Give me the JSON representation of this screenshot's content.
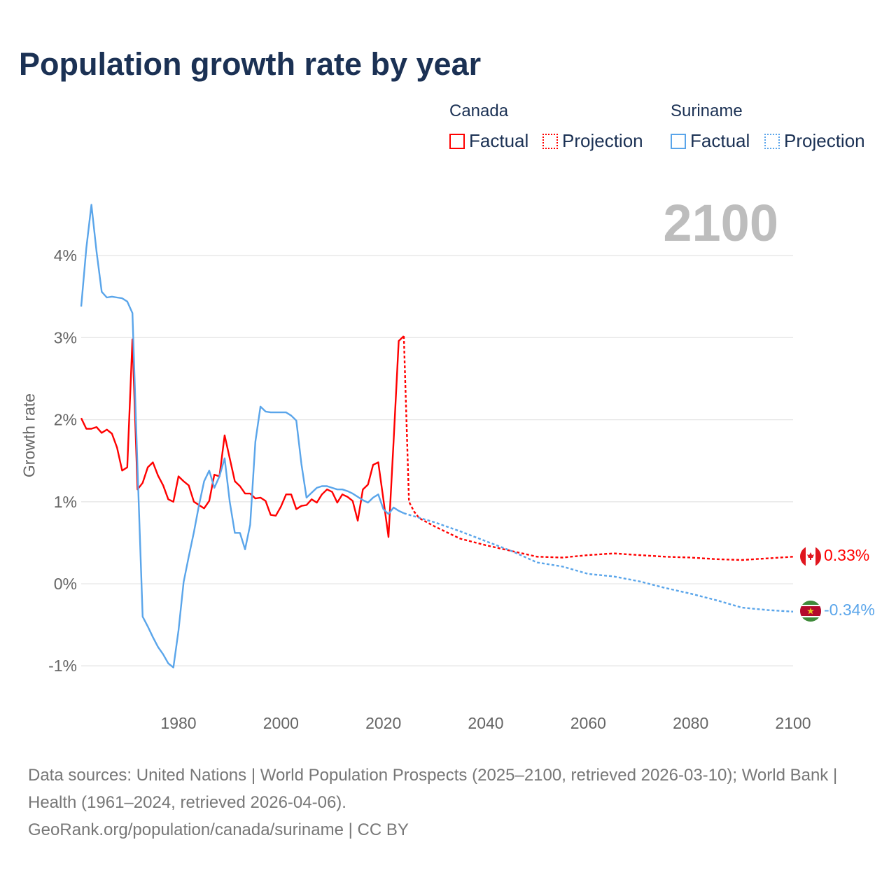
{
  "title": "Population growth rate by year",
  "year_display": "2100",
  "legend": {
    "canada": "Canada",
    "suriname": "Suriname",
    "factual": "Factual",
    "projection": "Projection"
  },
  "colors": {
    "canada": "#ff0000",
    "suriname": "#5aa5ea"
  },
  "end_labels": {
    "canada": "0.33%",
    "suriname": "-0.34%"
  },
  "footer": {
    "line1": "Data sources: United Nations | World Population Prospects (2025–2100, retrieved 2026-03-10); World Bank | Health (1961–2024, retrieved 2026-04-06).",
    "line2": "GeoRank.org/population/canada/suriname | CC BY"
  },
  "chart_data": {
    "type": "line",
    "title": "Population growth rate by year",
    "ylabel": "Growth rate",
    "xlabel": "",
    "xlim": [
      1961,
      2100
    ],
    "ylim": [
      -1.4,
      4.8
    ],
    "xticks": [
      1980,
      2000,
      2020,
      2040,
      2060,
      2080,
      2100
    ],
    "yticks": [
      -1,
      0,
      1,
      2,
      3,
      4
    ],
    "ytick_labels": [
      "-1%",
      "0%",
      "1%",
      "2%",
      "3%",
      "4%"
    ],
    "grid": true,
    "series": [
      {
        "name": "Canada Factual",
        "style": "solid",
        "color": "#ff0000",
        "x": [
          1961,
          1962,
          1963,
          1964,
          1965,
          1966,
          1967,
          1968,
          1969,
          1970,
          1971,
          1972,
          1973,
          1974,
          1975,
          1976,
          1977,
          1978,
          1979,
          1980,
          1981,
          1982,
          1983,
          1984,
          1985,
          1986,
          1987,
          1988,
          1989,
          1990,
          1991,
          1992,
          1993,
          1994,
          1995,
          1996,
          1997,
          1998,
          1999,
          2000,
          2001,
          2002,
          2003,
          2004,
          2005,
          2006,
          2007,
          2008,
          2009,
          2010,
          2011,
          2012,
          2013,
          2014,
          2015,
          2016,
          2017,
          2018,
          2019,
          2020,
          2021,
          2022,
          2023,
          2024
        ],
        "y": [
          2.02,
          1.89,
          1.89,
          1.91,
          1.84,
          1.88,
          1.83,
          1.66,
          1.38,
          1.42,
          2.98,
          1.15,
          1.23,
          1.42,
          1.48,
          1.32,
          1.2,
          1.03,
          1.0,
          1.31,
          1.25,
          1.2,
          1.0,
          0.96,
          0.92,
          1.01,
          1.33,
          1.31,
          1.81,
          1.53,
          1.25,
          1.19,
          1.1,
          1.1,
          1.04,
          1.05,
          1.01,
          0.84,
          0.83,
          0.94,
          1.09,
          1.09,
          0.91,
          0.95,
          0.96,
          1.03,
          0.99,
          1.09,
          1.15,
          1.12,
          0.99,
          1.09,
          1.06,
          1.01,
          0.77,
          1.15,
          1.21,
          1.45,
          1.48,
          1.03,
          0.57,
          1.74,
          2.96,
          3.02
        ]
      },
      {
        "name": "Canada Projection",
        "style": "dotted",
        "color": "#ff0000",
        "x": [
          2024,
          2025,
          2026,
          2027,
          2030,
          2035,
          2040,
          2045,
          2050,
          2055,
          2060,
          2065,
          2070,
          2075,
          2080,
          2085,
          2090,
          2095,
          2100
        ],
        "y": [
          3.02,
          1.0,
          0.88,
          0.8,
          0.7,
          0.55,
          0.47,
          0.4,
          0.33,
          0.32,
          0.35,
          0.37,
          0.35,
          0.33,
          0.32,
          0.3,
          0.29,
          0.31,
          0.33
        ]
      },
      {
        "name": "Suriname Factual",
        "style": "solid",
        "color": "#5aa5ea",
        "x": [
          1961,
          1962,
          1963,
          1964,
          1965,
          1966,
          1967,
          1968,
          1969,
          1970,
          1971,
          1972,
          1973,
          1974,
          1975,
          1976,
          1977,
          1978,
          1979,
          1980,
          1981,
          1982,
          1983,
          1984,
          1985,
          1986,
          1987,
          1988,
          1989,
          1990,
          1991,
          1992,
          1993,
          1994,
          1995,
          1996,
          1997,
          1998,
          1999,
          2000,
          2001,
          2002,
          2003,
          2004,
          2005,
          2006,
          2007,
          2008,
          2009,
          2010,
          2011,
          2012,
          2013,
          2014,
          2015,
          2016,
          2017,
          2018,
          2019,
          2020,
          2021,
          2022,
          2023,
          2024
        ],
        "y": [
          3.38,
          4.09,
          4.62,
          4.05,
          3.56,
          3.49,
          3.5,
          3.49,
          3.48,
          3.44,
          3.3,
          1.4,
          -0.4,
          -0.52,
          -0.65,
          -0.77,
          -0.86,
          -0.97,
          -1.02,
          -0.57,
          0.02,
          0.33,
          0.63,
          0.96,
          1.25,
          1.38,
          1.17,
          1.31,
          1.53,
          1.0,
          0.62,
          0.62,
          0.42,
          0.72,
          1.73,
          2.16,
          2.1,
          2.09,
          2.09,
          2.09,
          2.09,
          2.05,
          1.99,
          1.46,
          1.05,
          1.11,
          1.17,
          1.19,
          1.19,
          1.17,
          1.15,
          1.15,
          1.13,
          1.1,
          1.06,
          1.02,
          0.99,
          1.05,
          1.09,
          0.91,
          0.85,
          0.93,
          0.89,
          0.86
        ]
      },
      {
        "name": "Suriname Projection",
        "style": "dotted",
        "color": "#5aa5ea",
        "x": [
          2024,
          2030,
          2035,
          2040,
          2045,
          2050,
          2055,
          2060,
          2065,
          2070,
          2075,
          2080,
          2085,
          2090,
          2095,
          2100
        ],
        "y": [
          0.86,
          0.75,
          0.64,
          0.52,
          0.4,
          0.26,
          0.21,
          0.12,
          0.09,
          0.03,
          -0.05,
          -0.12,
          -0.2,
          -0.29,
          -0.32,
          -0.34
        ]
      }
    ]
  }
}
